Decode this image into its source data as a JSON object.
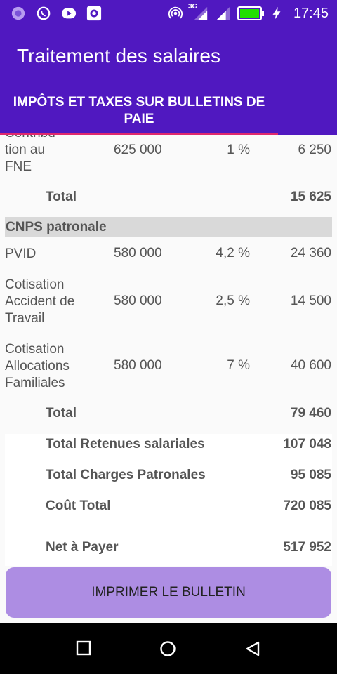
{
  "status": {
    "time": "17:45",
    "network": "3G"
  },
  "app": {
    "title": "Traitement des salaires"
  },
  "tab": {
    "label": "IMPÔTS ET TAXES SUR BULLETINS DE PAIE"
  },
  "fne": {
    "name_top": "Contribu",
    "name_1": "tion au",
    "name_2": "FNE",
    "base": "625 000",
    "rate": "1 %",
    "amount": "6 250"
  },
  "total1": {
    "label": "Total",
    "amount": "15 625"
  },
  "cnps": {
    "header": "CNPS patronale",
    "rows": [
      {
        "name": [
          "PVID"
        ],
        "base": "580 000",
        "rate": "4,2 %",
        "amount": "24 360"
      },
      {
        "name": [
          "Cotisation",
          "Accident de",
          "Travail"
        ],
        "base": "580 000",
        "rate": "2,5 %",
        "amount": "14 500"
      },
      {
        "name": [
          "Cotisation",
          "Allocations",
          "Familiales"
        ],
        "base": "580 000",
        "rate": "7 %",
        "amount": "40 600"
      }
    ]
  },
  "total2": {
    "label": "Total",
    "amount": "79 460"
  },
  "summary": [
    {
      "label": "Total Retenues salariales",
      "amount": "107 048"
    },
    {
      "label": "Total Charges Patronales",
      "amount": "95 085"
    },
    {
      "label": "Coût Total",
      "amount": "720 085"
    },
    {
      "label": "Net à Payer",
      "amount": "517 952"
    }
  ],
  "button": {
    "label": "IMPRIMER LE BULLETIN"
  },
  "icons": {
    "status_left": [
      "pinwheel-icon",
      "whatsapp-icon",
      "youtube-icon",
      "camera-app-icon"
    ],
    "status_right": [
      "hotspot-icon",
      "signal-3g-icon",
      "signal-icon",
      "battery-icon",
      "charging-icon"
    ],
    "nav": [
      "recents-square-icon",
      "home-circle-icon",
      "back-triangle-icon"
    ]
  }
}
